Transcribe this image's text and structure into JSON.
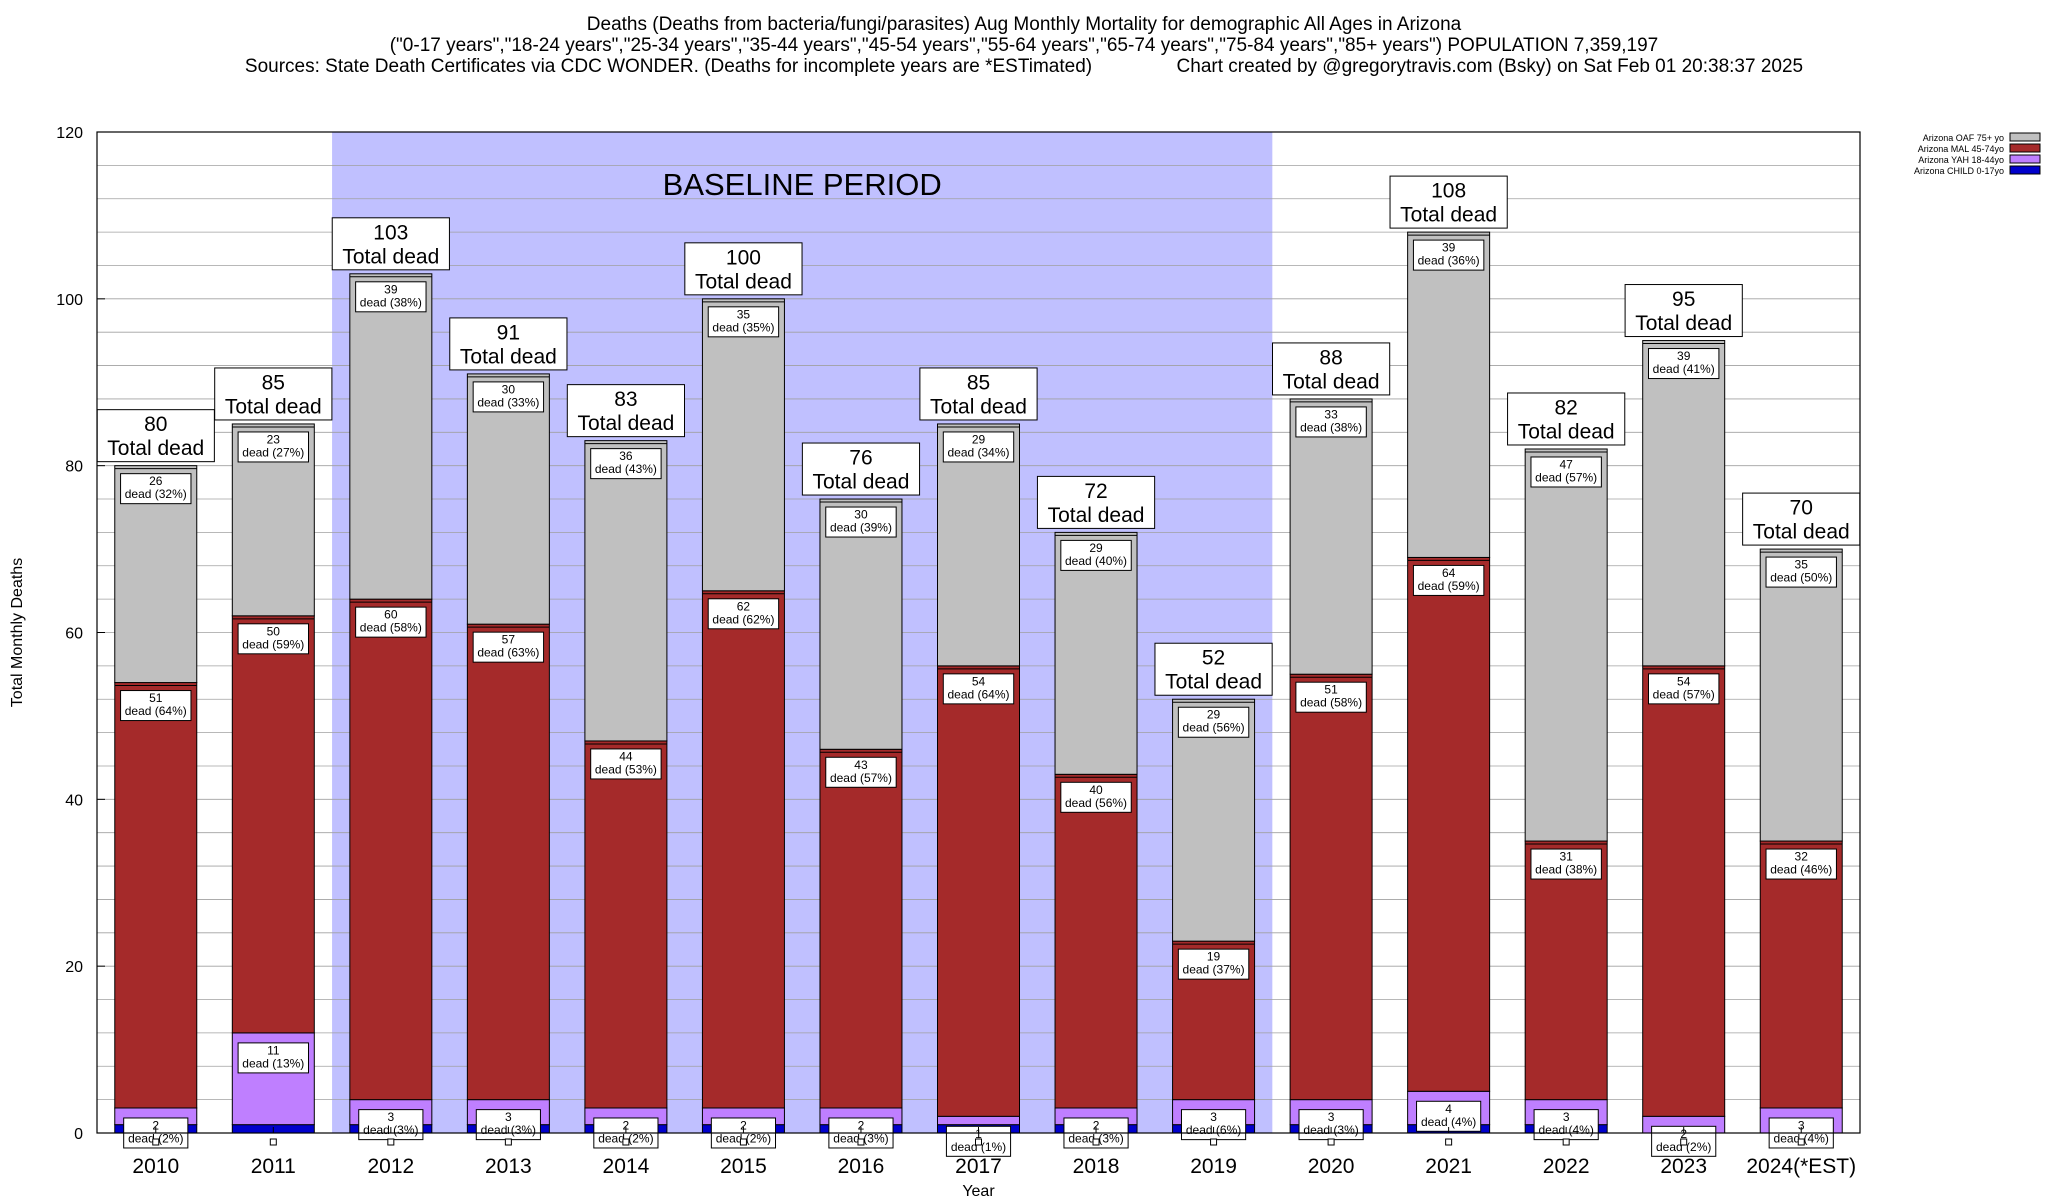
{
  "chart_data": {
    "type": "bar",
    "stacked": true,
    "title_lines": [
      "Deaths (Deaths from bacteria/fungi/parasites) Aug Monthly Mortality for demographic All Ages in Arizona",
      "(\"0-17 years\",\"18-24 years\",\"25-34 years\",\"35-44 years\",\"45-54 years\",\"55-64 years\",\"65-74 years\",\"75-84 years\",\"85+ years\") POPULATION 7,359,197",
      "Sources: State Death Certificates via CDC WONDER. (Deaths for incomplete years are *ESTimated)                Chart created by @gregorytravis.com (Bsky) on Sat Feb 01 20:38:37 2025"
    ],
    "xlabel": "Year",
    "ylabel": "Total Monthly Deaths",
    "ylim": [
      0,
      120
    ],
    "yticks": [
      0,
      20,
      40,
      60,
      80,
      100,
      120
    ],
    "grid": true,
    "legend_position": "top-right",
    "baseline_label": "BASELINE PERIOD",
    "baseline_range": [
      "2012",
      "2019"
    ],
    "total_label_suffix": "Total dead",
    "segment_label_prefix": "dead",
    "categories": [
      "2010",
      "2011",
      "2012",
      "2013",
      "2014",
      "2015",
      "2016",
      "2017",
      "2018",
      "2019",
      "2020",
      "2021",
      "2022",
      "2023",
      "2024(*EST)"
    ],
    "series": [
      {
        "name": "Arizona CHILD 0-17yo",
        "color": "#0000cc",
        "values": [
          1,
          1,
          1,
          1,
          1,
          1,
          1,
          1,
          1,
          1,
          1,
          1,
          1,
          0,
          0
        ]
      },
      {
        "name": "Arizona YAH 18-44yo",
        "color": "#bf7fff",
        "values": [
          2,
          11,
          3,
          3,
          2,
          2,
          2,
          1,
          2,
          3,
          3,
          4,
          3,
          2,
          3
        ],
        "labels": [
          "2\ndead (2%)",
          "11\ndead (13%)",
          "3\ndead (3%)",
          "3\ndead (3%)",
          "2\ndead (2%)",
          "2\ndead (2%)",
          "2\ndead (3%)",
          "1\ndead (1%)",
          "2\ndead (3%)",
          "3\ndead (6%)",
          "3\ndead (3%)",
          "4\ndead (4%)",
          "3\ndead (4%)",
          "2\ndead (2%)",
          "3\ndead (4%)"
        ]
      },
      {
        "name": "Arizona MAL 45-74yo",
        "color": "#a52a2a",
        "values": [
          51,
          50,
          60,
          57,
          44,
          62,
          43,
          54,
          40,
          19,
          51,
          64,
          31,
          54,
          32
        ],
        "labels": [
          "51\ndead (64%)",
          "50\ndead (59%)",
          "60\ndead (58%)",
          "57\ndead (63%)",
          "44\ndead (53%)",
          "62\ndead (62%)",
          "43\ndead (57%)",
          "54\ndead (64%)",
          "40\ndead (56%)",
          "19\ndead (37%)",
          "51\ndead (58%)",
          "64\ndead (59%)",
          "31\ndead (38%)",
          "54\ndead (57%)",
          "32\ndead (46%)"
        ]
      },
      {
        "name": "Arizona OAF 75+ yo",
        "color": "#c0c0c0",
        "values": [
          26,
          23,
          39,
          30,
          36,
          35,
          30,
          29,
          29,
          29,
          33,
          39,
          47,
          39,
          35
        ],
        "labels": [
          "26\ndead (32%)",
          "23\ndead (27%)",
          "39\ndead (38%)",
          "30\ndead (33%)",
          "36\ndead (43%)",
          "35\ndead (35%)",
          "30\ndead (39%)",
          "29\ndead (34%)",
          "29\ndead (40%)",
          "29\ndead (56%)",
          "33\ndead (38%)",
          "39\ndead (36%)",
          "47\ndead (57%)",
          "39\ndead (41%)",
          "35\ndead (50%)"
        ]
      }
    ],
    "totals": [
      80,
      85,
      103,
      91,
      83,
      100,
      76,
      85,
      72,
      52,
      88,
      108,
      82,
      95,
      70
    ],
    "legend_order": [
      "Arizona OAF 75+ yo",
      "Arizona MAL 45-74yo",
      "Arizona YAH 18-44yo",
      "Arizona CHILD 0-17yo"
    ],
    "colors": {
      "baseline_shade": "#c0c0ff",
      "grid": "#a0a0a0"
    }
  }
}
